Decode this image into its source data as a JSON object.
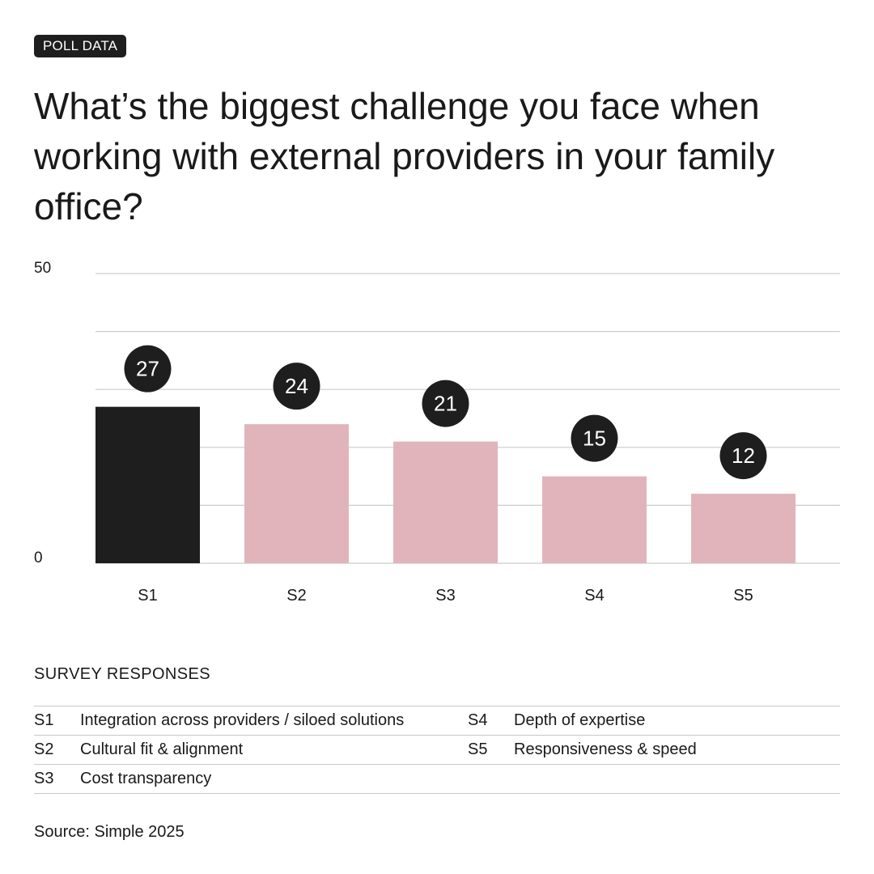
{
  "badge": "POLL DATA",
  "title": "What’s the biggest challenge you face when working with external providers in your family office?",
  "chart_data": {
    "type": "bar",
    "categories": [
      "S1",
      "S2",
      "S3",
      "S4",
      "S5"
    ],
    "values": [
      27,
      24,
      21,
      15,
      12
    ],
    "ylim": [
      0,
      50
    ],
    "yticks_labeled": [
      "0",
      "50"
    ],
    "grid": true,
    "highlight_index": 0,
    "colors": {
      "highlight": "#1e1e1e",
      "bar": "#e1b4bb",
      "label_bubble": "#1e1e1e",
      "label_text": "#ffffff",
      "grid": "#cccccc"
    }
  },
  "legend": {
    "heading": "SURVEY RESPONSES",
    "rows": [
      {
        "left_code": "S1",
        "left_label": "Integration across providers / siloed solutions",
        "right_code": "S4",
        "right_label": "Depth of expertise"
      },
      {
        "left_code": "S2",
        "left_label": "Cultural fit & alignment",
        "right_code": "S5",
        "right_label": "Responsiveness & speed"
      },
      {
        "left_code": "S3",
        "left_label": "Cost transparency",
        "right_code": "",
        "right_label": ""
      }
    ]
  },
  "source": "Source: Simple 2025"
}
